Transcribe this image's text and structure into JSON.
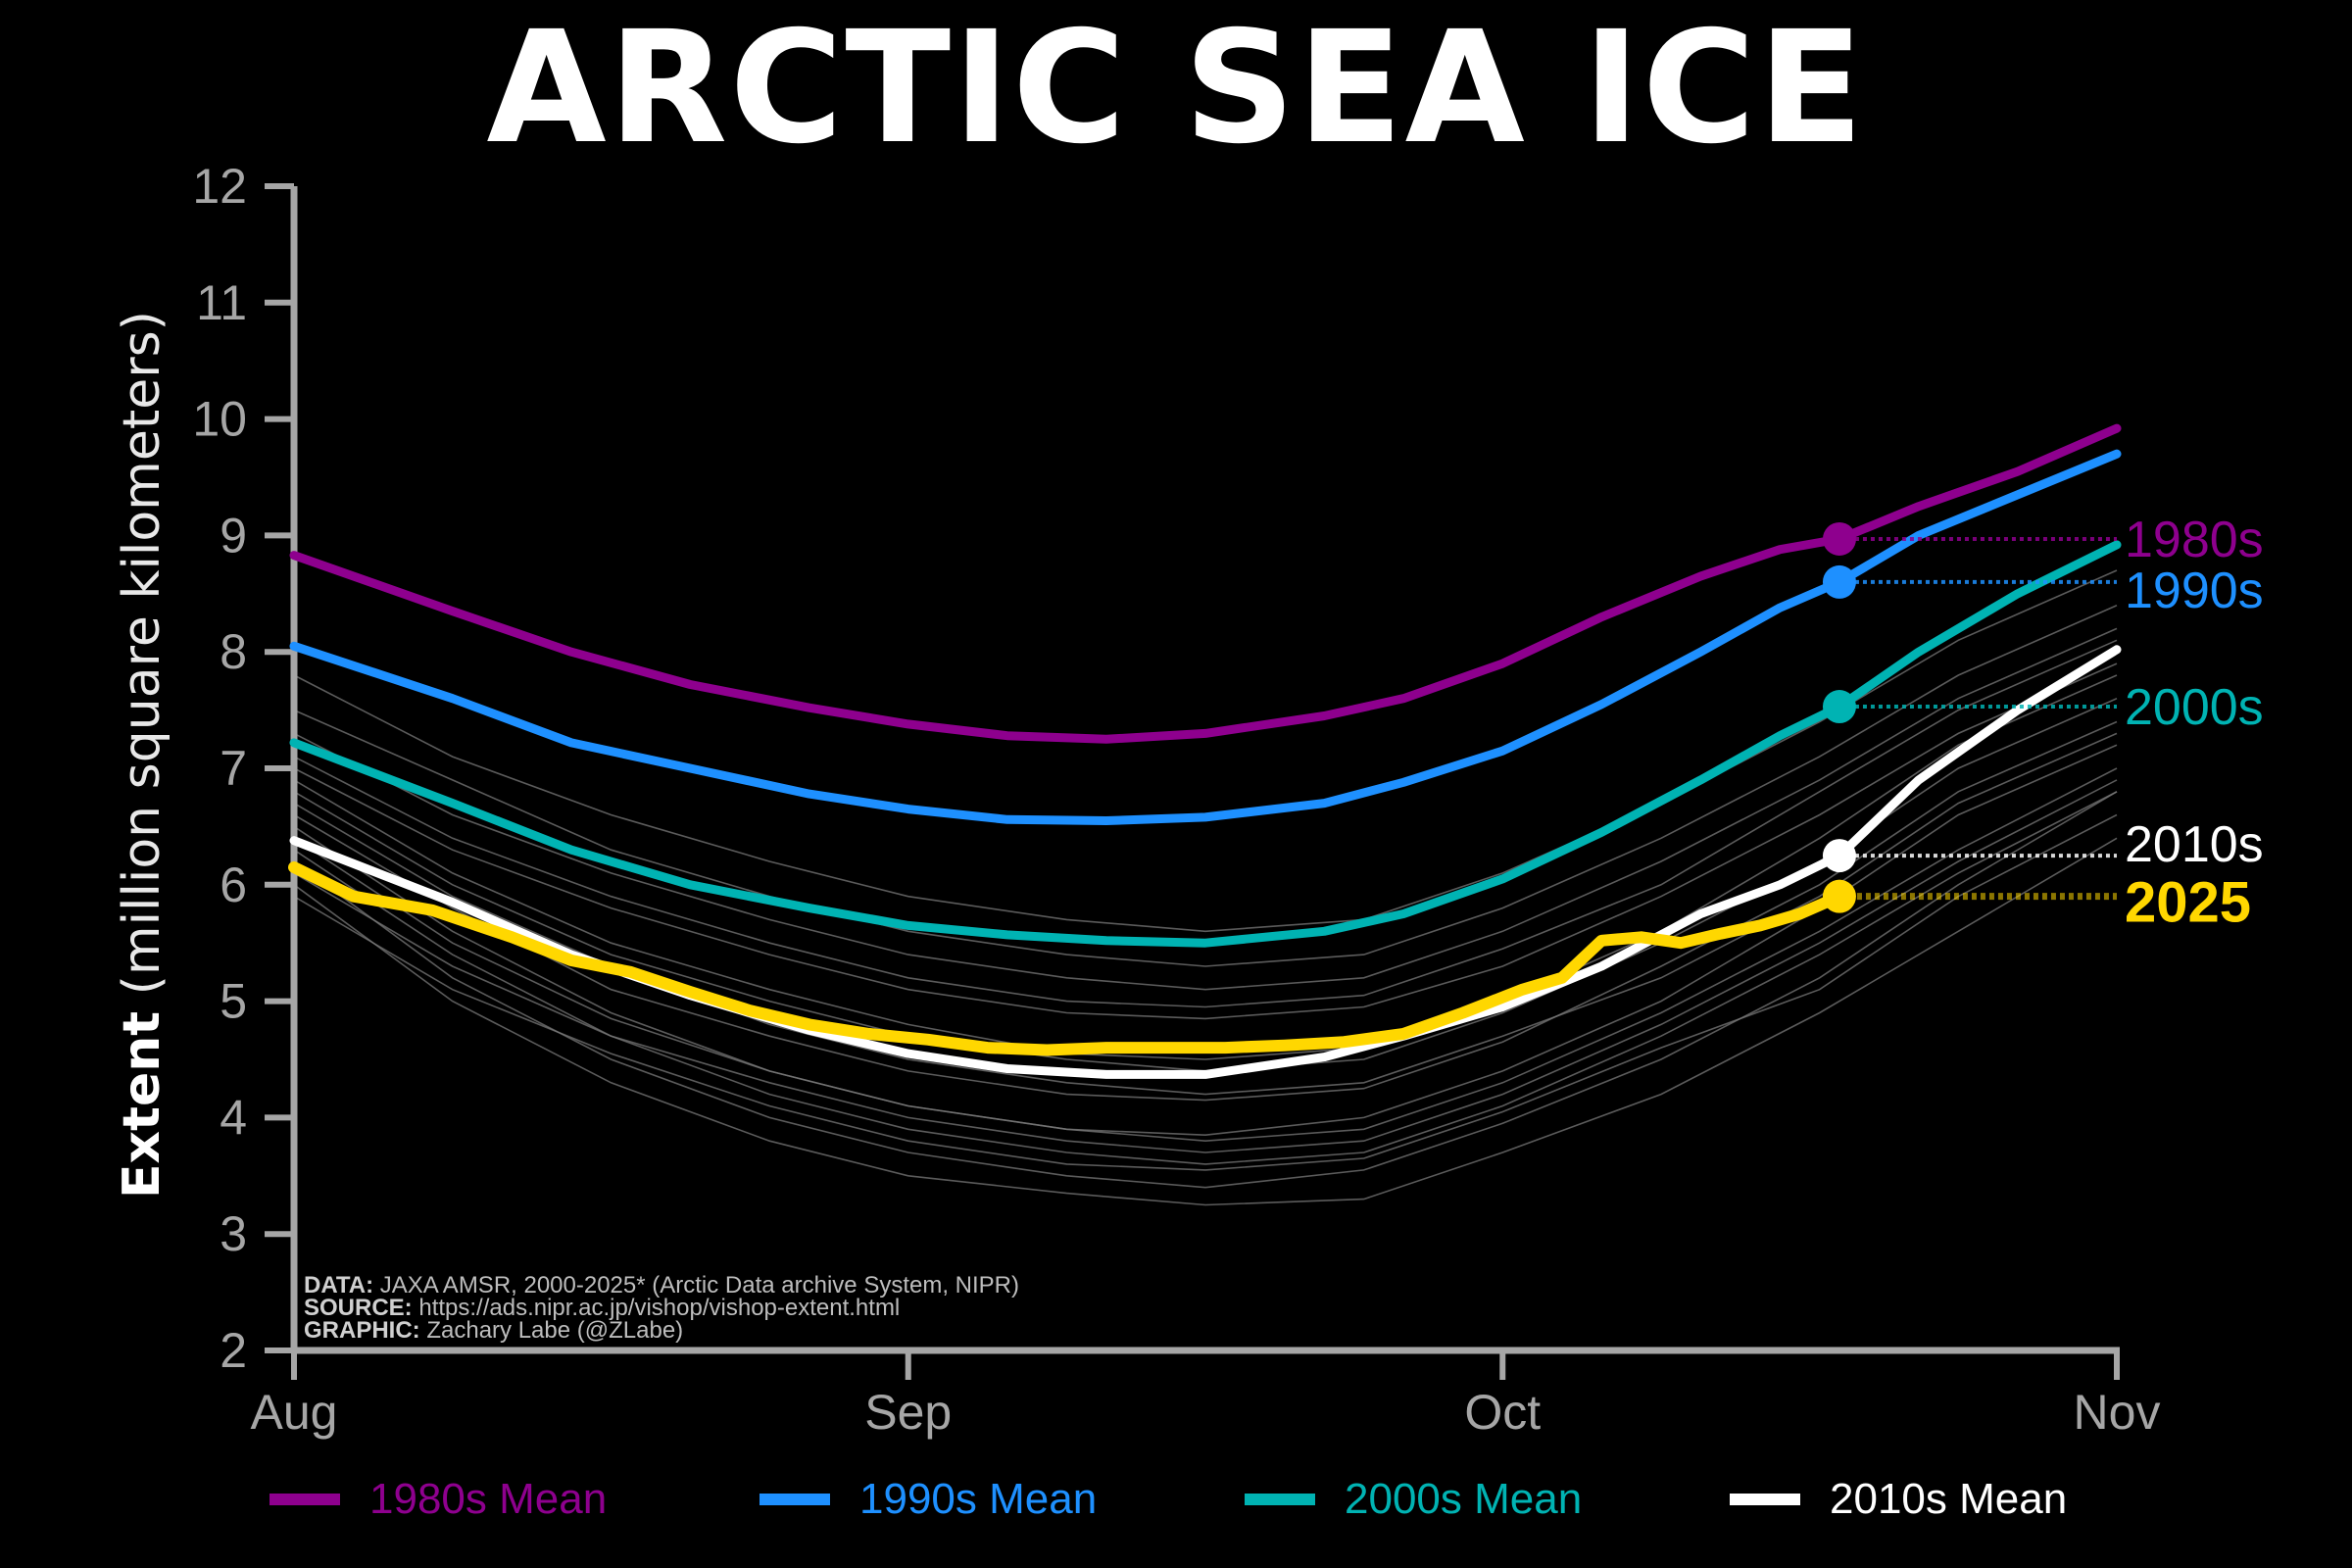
{
  "title": "ARCTIC SEA ICE",
  "ylabel_bold": "Extent",
  "ylabel_rest": " (million square kilometers)",
  "credits": {
    "data_label": "DATA:",
    "data_text": " JAXA AMSR, 2000-2025* (Arctic Data archive System, NIPR)",
    "source_label": "SOURCE:",
    "source_text": " https://ads.nipr.ac.jp/vishop/vishop-extent.html",
    "graphic_label": "GRAPHIC:",
    "graphic_text": " Zachary Labe (@ZLabe)"
  },
  "legend": [
    {
      "label": "1980s Mean",
      "color": "#8e008e"
    },
    {
      "label": "1990s Mean",
      "color": "#1e90ff"
    },
    {
      "label": "2000s Mean",
      "color": "#00b3b3"
    },
    {
      "label": "2010s Mean",
      "color": "#ffffff"
    }
  ],
  "chart_data": {
    "type": "line",
    "title": "ARCTIC SEA ICE",
    "xlabel": "",
    "ylabel": "Extent (million square kilometers)",
    "ylim": [
      2,
      12
    ],
    "yticks": [
      2,
      3,
      4,
      5,
      6,
      7,
      8,
      9,
      10,
      11,
      12
    ],
    "xlim": [
      0,
      92
    ],
    "xticks": [
      {
        "label": "Aug",
        "day": 0
      },
      {
        "label": "Sep",
        "day": 31
      },
      {
        "label": "Oct",
        "day": 61
      },
      {
        "label": "Nov",
        "day": 92
      }
    ],
    "grid": false,
    "legend_position": "bottom",
    "marker_day": 78,
    "series": [
      {
        "name": "1980s Mean",
        "color": "#8e008e",
        "end_label": "1980s",
        "end_value": 8.97,
        "width": 9,
        "x": [
          0,
          8,
          14,
          20,
          26,
          31,
          36,
          41,
          46,
          52,
          56,
          61,
          66,
          71,
          75,
          78,
          82,
          87,
          92
        ],
        "y": [
          8.83,
          8.35,
          8.0,
          7.72,
          7.52,
          7.38,
          7.28,
          7.25,
          7.3,
          7.45,
          7.6,
          7.9,
          8.3,
          8.65,
          8.88,
          8.97,
          9.25,
          9.55,
          9.92
        ]
      },
      {
        "name": "1990s Mean",
        "color": "#1e90ff",
        "end_label": "1990s",
        "end_value": 8.6,
        "width": 9,
        "x": [
          0,
          8,
          14,
          20,
          26,
          31,
          36,
          41,
          46,
          52,
          56,
          61,
          66,
          71,
          75,
          78,
          82,
          87,
          92
        ],
        "y": [
          8.05,
          7.6,
          7.22,
          7.0,
          6.78,
          6.65,
          6.56,
          6.55,
          6.58,
          6.7,
          6.88,
          7.15,
          7.55,
          8.0,
          8.38,
          8.6,
          9.0,
          9.35,
          9.7
        ]
      },
      {
        "name": "2000s Mean",
        "color": "#00b3b3",
        "end_label": "2000s",
        "end_value": 7.53,
        "width": 9,
        "x": [
          0,
          8,
          14,
          20,
          26,
          31,
          36,
          41,
          46,
          52,
          56,
          61,
          66,
          71,
          75,
          78,
          82,
          87,
          92
        ],
        "y": [
          7.22,
          6.7,
          6.3,
          6.0,
          5.8,
          5.65,
          5.57,
          5.52,
          5.5,
          5.6,
          5.75,
          6.05,
          6.45,
          6.9,
          7.28,
          7.53,
          8.0,
          8.5,
          8.92
        ]
      },
      {
        "name": "2010s Mean",
        "color": "#ffffff",
        "end_label": "2010s",
        "end_value": 6.25,
        "width": 9,
        "x": [
          0,
          8,
          14,
          20,
          26,
          31,
          36,
          41,
          46,
          52,
          56,
          61,
          66,
          71,
          75,
          78,
          82,
          87,
          92
        ],
        "y": [
          6.38,
          5.85,
          5.4,
          5.05,
          4.75,
          4.55,
          4.42,
          4.37,
          4.37,
          4.52,
          4.7,
          4.95,
          5.3,
          5.75,
          6.0,
          6.25,
          6.9,
          7.5,
          8.02
        ]
      },
      {
        "name": "2025",
        "color": "#ffd700",
        "end_label": "2025",
        "end_value": 5.9,
        "width": 12,
        "x": [
          0,
          3,
          7,
          11,
          14,
          17,
          20,
          23,
          26,
          29,
          32,
          35,
          38,
          41,
          44,
          47,
          50,
          53,
          56,
          59,
          62,
          64,
          66,
          68,
          70,
          72,
          74,
          76,
          78
        ],
        "y": [
          6.15,
          5.9,
          5.78,
          5.55,
          5.35,
          5.25,
          5.08,
          4.92,
          4.8,
          4.72,
          4.67,
          4.6,
          4.58,
          4.6,
          4.6,
          4.6,
          4.62,
          4.65,
          4.72,
          4.9,
          5.1,
          5.2,
          5.52,
          5.55,
          5.5,
          5.58,
          5.65,
          5.75,
          5.9
        ]
      }
    ],
    "background_years": {
      "color": "#7a7a7a",
      "x": [
        0,
        8,
        16,
        24,
        31,
        39,
        46,
        54,
        61,
        69,
        77,
        84,
        92
      ],
      "years": [
        [
          7.0,
          6.3,
          5.8,
          5.4,
          5.1,
          4.9,
          4.85,
          4.95,
          5.3,
          5.9,
          6.6,
          7.3,
          7.9
        ],
        [
          6.8,
          6.0,
          5.4,
          5.0,
          4.7,
          4.5,
          4.4,
          4.5,
          4.9,
          5.5,
          6.2,
          7.0,
          7.6
        ],
        [
          6.5,
          5.6,
          4.9,
          4.4,
          4.1,
          3.9,
          3.85,
          4.0,
          4.4,
          5.0,
          5.8,
          6.6,
          7.2
        ],
        [
          6.2,
          5.2,
          4.5,
          4.0,
          3.7,
          3.5,
          3.4,
          3.55,
          3.95,
          4.5,
          5.2,
          6.0,
          6.8
        ],
        [
          6.0,
          5.0,
          4.3,
          3.8,
          3.5,
          3.35,
          3.25,
          3.3,
          3.7,
          4.2,
          4.9,
          5.6,
          6.4
        ],
        [
          7.3,
          6.6,
          6.1,
          5.7,
          5.4,
          5.2,
          5.1,
          5.2,
          5.6,
          6.2,
          6.9,
          7.6,
          8.2
        ],
        [
          6.9,
          6.1,
          5.5,
          5.1,
          4.8,
          4.55,
          4.5,
          4.6,
          5.0,
          5.6,
          6.4,
          7.2,
          7.8
        ],
        [
          6.6,
          5.8,
          5.1,
          4.7,
          4.4,
          4.2,
          4.15,
          4.25,
          4.65,
          5.3,
          6.0,
          6.8,
          7.4
        ],
        [
          6.4,
          5.5,
          4.85,
          4.4,
          4.1,
          3.9,
          3.8,
          3.9,
          4.3,
          4.9,
          5.6,
          6.3,
          7.0
        ],
        [
          7.8,
          7.1,
          6.6,
          6.2,
          5.9,
          5.7,
          5.6,
          5.7,
          6.1,
          6.7,
          7.4,
          8.1,
          8.7
        ],
        [
          7.5,
          6.9,
          6.3,
          5.9,
          5.6,
          5.4,
          5.3,
          5.4,
          5.8,
          6.4,
          7.1,
          7.8,
          8.4
        ],
        [
          6.3,
          5.4,
          4.7,
          4.2,
          3.9,
          3.7,
          3.6,
          3.7,
          4.1,
          4.7,
          5.4,
          6.1,
          6.8
        ],
        [
          6.7,
          5.9,
          5.3,
          4.8,
          4.5,
          4.3,
          4.2,
          4.3,
          4.7,
          5.2,
          5.9,
          6.7,
          7.3
        ],
        [
          7.1,
          6.4,
          5.9,
          5.5,
          5.2,
          5.0,
          4.95,
          5.05,
          5.45,
          6.0,
          6.8,
          7.5,
          8.1
        ],
        [
          5.9,
          5.1,
          4.55,
          4.1,
          3.8,
          3.6,
          3.55,
          3.65,
          4.05,
          4.6,
          5.1,
          5.9,
          6.6
        ],
        [
          6.1,
          5.3,
          4.7,
          4.3,
          4.0,
          3.8,
          3.7,
          3.8,
          4.2,
          4.8,
          5.5,
          6.2,
          6.9
        ]
      ]
    }
  }
}
